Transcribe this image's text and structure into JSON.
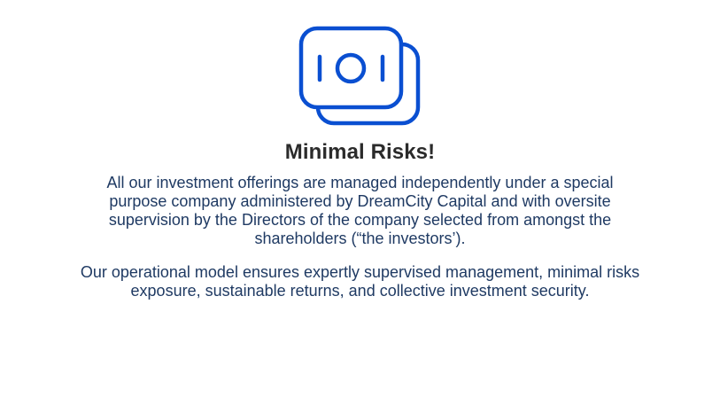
{
  "feature": {
    "icon": "money-notes-icon",
    "accent_color": "#0a4fd1",
    "title": "Minimal Risks!",
    "paragraph1_lines": [
      "All our investment offerings are managed independently under a special",
      "purpose company administered by DreamCity Capital and with oversite",
      "supervision by the Directors of the company selected from amongst the",
      "shareholders (“the investors’)."
    ],
    "paragraph2_lines": [
      "Our operational model ensures expertly supervised management, minimal risks",
      "exposure, sustainable returns, and collective investment security."
    ]
  }
}
